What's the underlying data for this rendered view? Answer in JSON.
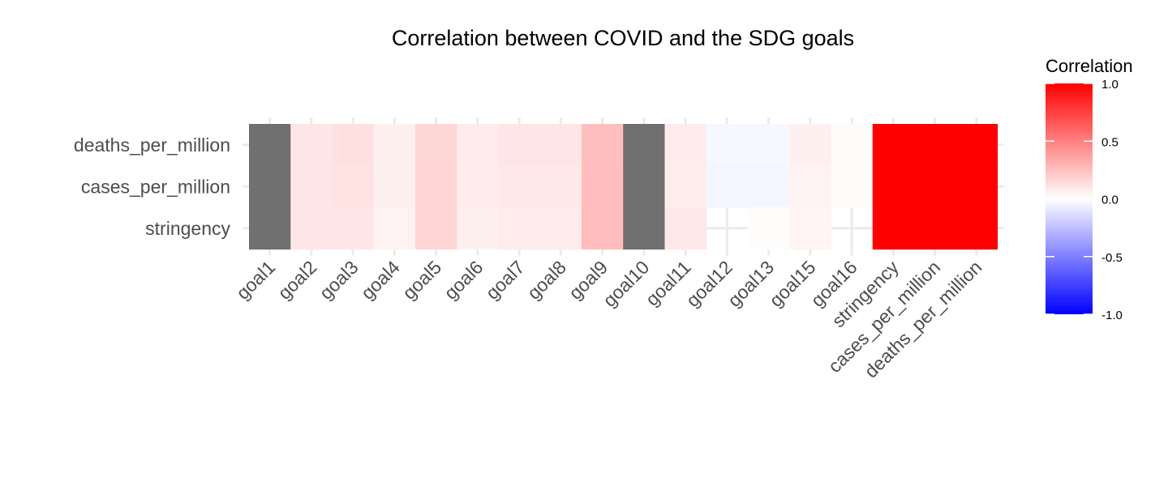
{
  "chart_data": {
    "type": "heatmap",
    "title": "Correlation between COVID and the SDG goals",
    "x_categories": [
      "goal1",
      "goal2",
      "goal3",
      "goal4",
      "goal5",
      "goal6",
      "goal7",
      "goal8",
      "goal9",
      "goal10",
      "goal11",
      "goal12",
      "goal13",
      "goal15",
      "goal16",
      "stringency",
      "cases_per_million",
      "deaths_per_million"
    ],
    "y_categories": [
      "deaths_per_million",
      "cases_per_million",
      "stringency"
    ],
    "values": [
      [
        null,
        0.1,
        0.12,
        0.06,
        0.16,
        0.08,
        0.1,
        0.1,
        0.25,
        null,
        0.08,
        -0.03,
        -0.03,
        0.06,
        0.02,
        1.0,
        1.0,
        1.0
      ],
      [
        null,
        0.1,
        0.11,
        0.06,
        0.17,
        0.08,
        0.09,
        0.09,
        0.26,
        null,
        0.07,
        -0.04,
        -0.04,
        0.05,
        0.02,
        1.0,
        1.0,
        1.0
      ],
      [
        null,
        0.1,
        0.1,
        0.05,
        0.17,
        0.06,
        0.08,
        0.08,
        0.26,
        null,
        0.09,
        null,
        0.01,
        0.04,
        null,
        1.0,
        1.0,
        1.0
      ]
    ],
    "na_color": "#707070",
    "legend": {
      "title": "Correlation",
      "ticks": [
        1.0,
        0.5,
        0.0,
        -0.5,
        -1.0
      ],
      "tick_labels": [
        "1.0",
        "0.5",
        "0.0",
        "-0.5",
        "-1.0"
      ],
      "low_color": "#0000ff",
      "mid_color": "#ffffff",
      "high_color": "#ff0000",
      "limits": [
        -1.0,
        1.0
      ]
    }
  }
}
